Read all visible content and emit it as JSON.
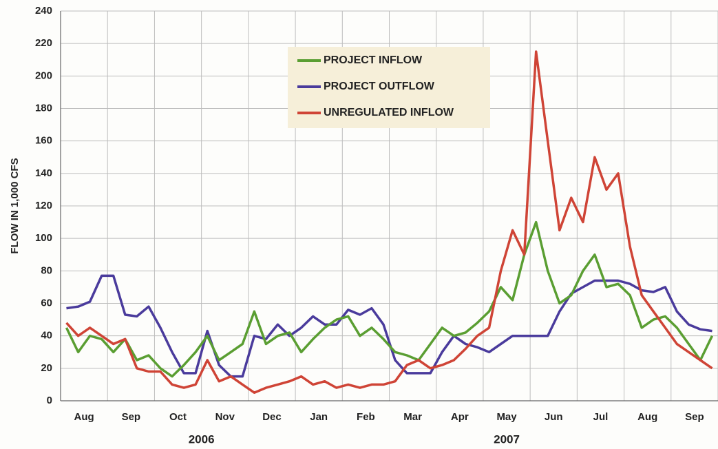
{
  "chart_data": {
    "type": "line",
    "y_label": "FLOW IN 1,000 CFS",
    "categories": [
      null,
      null,
      "Aug",
      null,
      null,
      null,
      "Sep",
      null,
      null,
      null,
      "Oct",
      null,
      null,
      null,
      "Nov",
      null,
      null,
      null,
      "Dec",
      null,
      null,
      null,
      "Jan",
      null,
      null,
      null,
      "Feb",
      null,
      null,
      null,
      "Mar",
      null,
      null,
      null,
      "Apr",
      null,
      null,
      null,
      "May",
      null,
      null,
      null,
      "Jun",
      null,
      null,
      null,
      "Jul",
      null,
      null,
      null,
      "Aug",
      null,
      null,
      null,
      "Sep",
      null
    ],
    "annotations": [
      {
        "text": "2006",
        "category": 12
      },
      {
        "text": "2007",
        "category": 38
      }
    ],
    "ylim": [
      0,
      240
    ],
    "yticks": [
      0,
      20,
      40,
      60,
      80,
      100,
      120,
      140,
      160,
      180,
      200,
      220,
      240
    ],
    "grid": true,
    "legend": "upper center",
    "series": [
      {
        "name": "PROJECT INFLOW",
        "color": "#5a9e32",
        "values": [
          45,
          30,
          40,
          38,
          30,
          38,
          25,
          28,
          20,
          15,
          22,
          30,
          40,
          25,
          30,
          35,
          55,
          35,
          40,
          42,
          30,
          38,
          45,
          50,
          52,
          40,
          45,
          38,
          30,
          28,
          25,
          35,
          45,
          40,
          42,
          48,
          55,
          70,
          62,
          90,
          110,
          80,
          60,
          65,
          80,
          90,
          70,
          72,
          65,
          45,
          50,
          52,
          45,
          35,
          25,
          40
        ]
      },
      {
        "name": "PROJECT OUTFLOW",
        "color": "#4a3b9c",
        "values": [
          57,
          58,
          61,
          77,
          77,
          53,
          52,
          58,
          45,
          30,
          17,
          17,
          43,
          22,
          15,
          15,
          40,
          38,
          47,
          40,
          45,
          52,
          47,
          47,
          56,
          53,
          57,
          47,
          25,
          17,
          17,
          17,
          30,
          40,
          35,
          33,
          30,
          35,
          40,
          40,
          40,
          40,
          55,
          66,
          70,
          74,
          74,
          74,
          72,
          68,
          67,
          70,
          55,
          47,
          44,
          43
        ]
      },
      {
        "name": "UNREGULATED INFLOW",
        "color": "#cf4436",
        "values": [
          48,
          40,
          45,
          40,
          35,
          38,
          20,
          18,
          18,
          10,
          8,
          10,
          25,
          12,
          15,
          10,
          5,
          8,
          10,
          12,
          15,
          10,
          12,
          8,
          10,
          8,
          10,
          10,
          12,
          22,
          25,
          20,
          22,
          25,
          32,
          40,
          45,
          80,
          105,
          90,
          215,
          160,
          105,
          125,
          110,
          150,
          130,
          140,
          95,
          65,
          55,
          45,
          35,
          30,
          25,
          20
        ]
      }
    ]
  }
}
